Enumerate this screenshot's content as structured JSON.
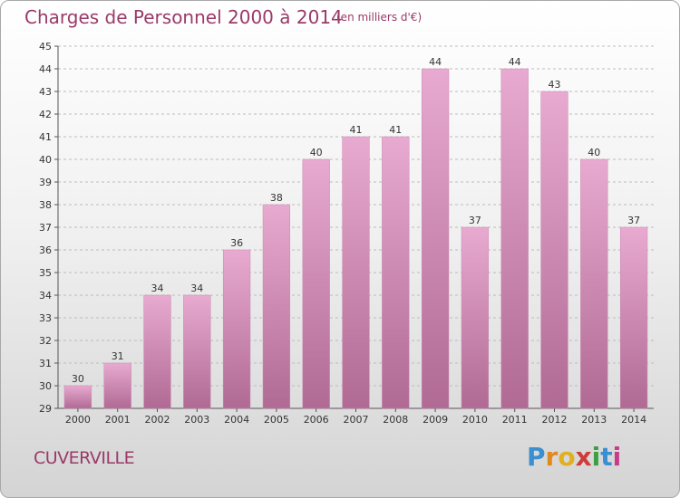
{
  "header": {
    "title": "Charges de Personnel 2000 à 2014",
    "subtitle": "(en milliers d'€)"
  },
  "footer": {
    "place": "CUVERVILLE",
    "logo_letters": [
      "P",
      "r",
      "o",
      "x",
      "i",
      "t",
      "i"
    ],
    "logo_colors": [
      "#3a8fd0",
      "#e08a1e",
      "#e0b020",
      "#d03a3a",
      "#3aa040",
      "#3a8fd0",
      "#c83a8a"
    ]
  },
  "colors": {
    "bar_top": "#e8aad0",
    "bar_bottom": "#b06a94",
    "accent": "#9a3a6a",
    "grid": "#bcbcbc"
  },
  "chart_data": {
    "type": "bar",
    "categories": [
      "2000",
      "2001",
      "2002",
      "2003",
      "2004",
      "2005",
      "2006",
      "2007",
      "2008",
      "2009",
      "2010",
      "2011",
      "2012",
      "2013",
      "2014"
    ],
    "values": [
      30,
      31,
      34,
      34,
      36,
      38,
      40,
      41,
      41,
      44,
      37,
      44,
      43,
      40,
      37
    ],
    "ylim": [
      29,
      45
    ],
    "yticks": [
      29,
      30,
      31,
      32,
      33,
      34,
      35,
      36,
      37,
      38,
      39,
      40,
      41,
      42,
      43,
      44,
      45
    ],
    "grid": true,
    "title": "Charges de Personnel 2000 à 2014",
    "xlabel": "",
    "ylabel": ""
  }
}
